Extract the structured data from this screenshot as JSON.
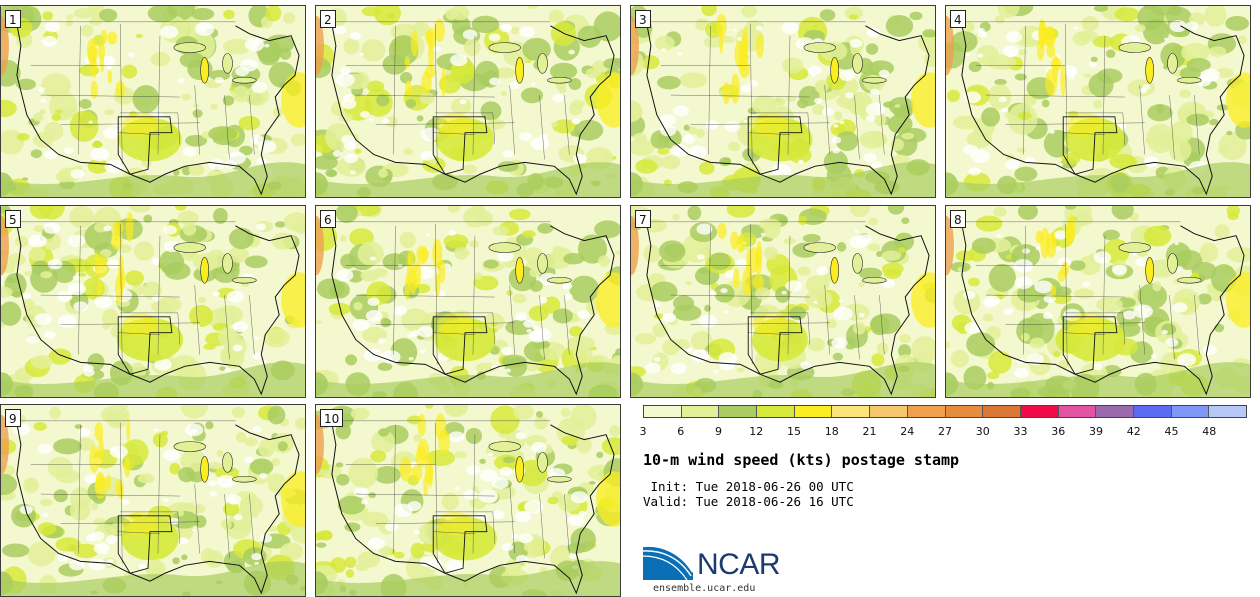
{
  "members": [
    "1",
    "2",
    "3",
    "4",
    "5",
    "6",
    "7",
    "8",
    "9",
    "10"
  ],
  "colorbar": {
    "colors": [
      "#f3f8cf",
      "#e2f098",
      "#a9cd60",
      "#d6e93a",
      "#fbed1f",
      "#fbe47a",
      "#f6c86e",
      "#eea04f",
      "#e58c3d",
      "#dc7837",
      "#ee0b46",
      "#e254a2",
      "#9a6aad",
      "#5a6bf1",
      "#7f97f7",
      "#b5c8f8"
    ],
    "labels": [
      "3",
      "6",
      "9",
      "12",
      "15",
      "18",
      "21",
      "24",
      "27",
      "30",
      "33",
      "36",
      "39",
      "42",
      "45",
      "48"
    ]
  },
  "title": "10-m wind speed (kts) postage stamp",
  "init_line": " Init: Tue 2018-06-26 00 UTC",
  "valid_line": "Valid: Tue 2018-06-26 16 UTC",
  "logo": {
    "text": "NCAR",
    "url": "ensemble.ucar.edu"
  }
}
